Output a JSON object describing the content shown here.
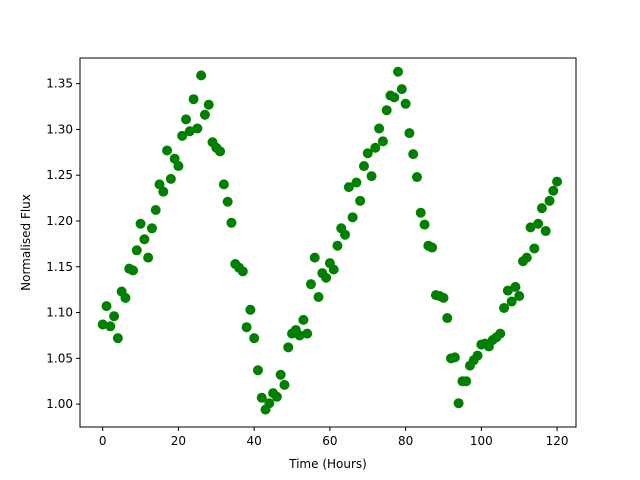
{
  "chart_data": {
    "type": "scatter",
    "title": "",
    "xlabel": "Time (Hours)",
    "ylabel": "Normalised Flux",
    "xlim": [
      -6,
      125
    ],
    "ylim": [
      0.975,
      1.378
    ],
    "xticks": [
      0,
      20,
      40,
      60,
      80,
      100,
      120
    ],
    "yticks": [
      1.0,
      1.05,
      1.1,
      1.15,
      1.2,
      1.25,
      1.3,
      1.35
    ],
    "ytick_labels": [
      "1.00",
      "1.05",
      "1.10",
      "1.15",
      "1.20",
      "1.25",
      "1.30",
      "1.35"
    ],
    "grid": false,
    "marker_color": "#008000",
    "series": [
      {
        "points": [
          [
            0,
            1.087
          ],
          [
            1,
            1.107
          ],
          [
            2,
            1.085
          ],
          [
            3,
            1.096
          ],
          [
            4,
            1.072
          ],
          [
            5,
            1.123
          ],
          [
            6,
            1.116
          ],
          [
            7,
            1.148
          ],
          [
            8,
            1.146
          ],
          [
            9,
            1.168
          ],
          [
            10,
            1.197
          ],
          [
            11,
            1.18
          ],
          [
            12,
            1.16
          ],
          [
            13,
            1.192
          ],
          [
            14,
            1.212
          ],
          [
            15,
            1.24
          ],
          [
            16,
            1.232
          ],
          [
            17,
            1.277
          ],
          [
            18,
            1.246
          ],
          [
            19,
            1.268
          ],
          [
            20,
            1.26
          ],
          [
            21,
            1.293
          ],
          [
            22,
            1.311
          ],
          [
            23,
            1.298
          ],
          [
            24,
            1.333
          ],
          [
            25,
            1.301
          ],
          [
            26,
            1.359
          ],
          [
            27,
            1.316
          ],
          [
            28,
            1.327
          ],
          [
            29,
            1.286
          ],
          [
            30,
            1.28
          ],
          [
            31,
            1.276
          ],
          [
            32,
            1.24
          ],
          [
            33,
            1.221
          ],
          [
            34,
            1.198
          ],
          [
            35,
            1.153
          ],
          [
            36,
            1.149
          ],
          [
            37,
            1.145
          ],
          [
            38,
            1.084
          ],
          [
            39,
            1.103
          ],
          [
            40,
            1.072
          ],
          [
            41,
            1.037
          ],
          [
            42,
            1.007
          ],
          [
            43,
            0.994
          ],
          [
            44,
            1.001
          ],
          [
            45,
            1.012
          ],
          [
            46,
            1.008
          ],
          [
            47,
            1.032
          ],
          [
            48,
            1.021
          ],
          [
            49,
            1.062
          ],
          [
            50,
            1.077
          ],
          [
            51,
            1.081
          ],
          [
            52,
            1.075
          ],
          [
            53,
            1.092
          ],
          [
            54,
            1.077
          ],
          [
            55,
            1.131
          ],
          [
            56,
            1.16
          ],
          [
            57,
            1.117
          ],
          [
            58,
            1.143
          ],
          [
            59,
            1.138
          ],
          [
            60,
            1.154
          ],
          [
            61,
            1.147
          ],
          [
            62,
            1.173
          ],
          [
            63,
            1.192
          ],
          [
            64,
            1.185
          ],
          [
            65,
            1.237
          ],
          [
            66,
            1.204
          ],
          [
            67,
            1.242
          ],
          [
            68,
            1.222
          ],
          [
            69,
            1.26
          ],
          [
            70,
            1.274
          ],
          [
            71,
            1.249
          ],
          [
            72,
            1.28
          ],
          [
            73,
            1.301
          ],
          [
            74,
            1.287
          ],
          [
            75,
            1.321
          ],
          [
            76,
            1.337
          ],
          [
            77,
            1.335
          ],
          [
            78,
            1.363
          ],
          [
            79,
            1.344
          ],
          [
            80,
            1.328
          ],
          [
            81,
            1.296
          ],
          [
            82,
            1.273
          ],
          [
            83,
            1.248
          ],
          [
            84,
            1.209
          ],
          [
            85,
            1.196
          ],
          [
            86,
            1.173
          ],
          [
            87,
            1.171
          ],
          [
            88,
            1.119
          ],
          [
            89,
            1.118
          ],
          [
            90,
            1.116
          ],
          [
            91,
            1.094
          ],
          [
            92,
            1.05
          ],
          [
            93,
            1.051
          ],
          [
            94,
            1.001
          ],
          [
            95,
            1.025
          ],
          [
            96,
            1.025
          ],
          [
            97,
            1.042
          ],
          [
            98,
            1.048
          ],
          [
            99,
            1.053
          ],
          [
            100,
            1.065
          ],
          [
            101,
            1.066
          ],
          [
            102,
            1.063
          ],
          [
            103,
            1.07
          ],
          [
            104,
            1.073
          ],
          [
            105,
            1.077
          ],
          [
            106,
            1.105
          ],
          [
            107,
            1.124
          ],
          [
            108,
            1.112
          ],
          [
            109,
            1.128
          ],
          [
            110,
            1.118
          ],
          [
            111,
            1.156
          ],
          [
            112,
            1.16
          ],
          [
            113,
            1.193
          ],
          [
            114,
            1.17
          ],
          [
            115,
            1.197
          ],
          [
            116,
            1.214
          ],
          [
            117,
            1.189
          ],
          [
            118,
            1.222
          ],
          [
            119,
            1.233
          ],
          [
            120,
            1.243
          ]
        ]
      }
    ]
  }
}
